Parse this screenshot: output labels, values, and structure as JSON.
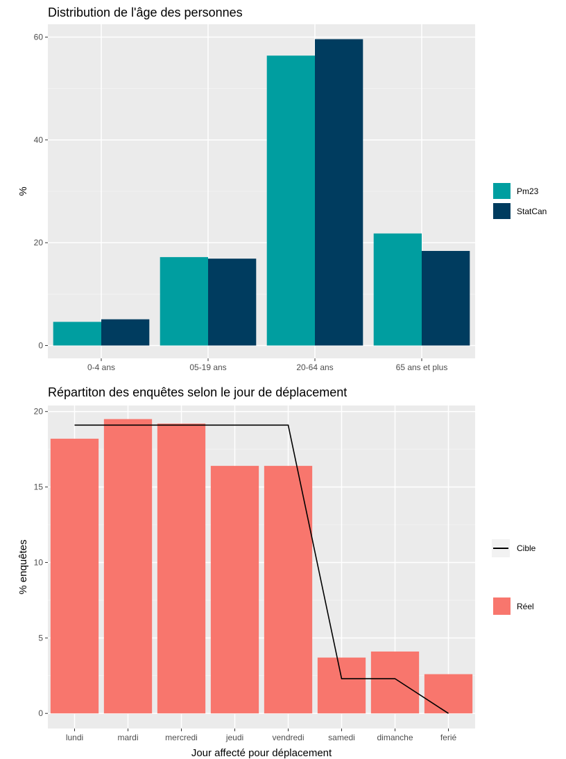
{
  "chart_data": [
    {
      "type": "bar",
      "title": "Distribution de l'âge des personnes",
      "xlabel": "",
      "ylabel": "%",
      "categories": [
        "0-4 ans",
        "05-19 ans",
        "20-64 ans",
        "65 ans et plus"
      ],
      "series": [
        {
          "name": "Pm23",
          "color": "#009ea0",
          "values": [
            4.6,
            17.2,
            56.4,
            21.8
          ]
        },
        {
          "name": "StatCan",
          "color": "#003c5f",
          "values": [
            5.1,
            16.9,
            59.6,
            18.4
          ]
        }
      ],
      "ylim": [
        -2.5,
        62.5
      ],
      "yticks": [
        0,
        20,
        40,
        60
      ],
      "grid": true,
      "legend": "right"
    },
    {
      "type": "bar",
      "title": "Répartiton des enquêtes selon le jour de déplacement",
      "xlabel": "Jour affecté pour déplacement",
      "ylabel": "% enquêtes",
      "categories": [
        "lundi",
        "mardi",
        "mercredi",
        "jeudi",
        "vendredi",
        "samedi",
        "dimanche",
        "ferié"
      ],
      "series": [
        {
          "name": "Réel",
          "kind": "bar",
          "color": "#f8766d",
          "values": [
            18.2,
            19.5,
            19.2,
            16.4,
            16.4,
            3.7,
            4.1,
            2.6
          ]
        },
        {
          "name": "Cible",
          "kind": "line",
          "color": "#000000",
          "values": [
            19.1,
            19.1,
            19.1,
            19.1,
            19.1,
            2.3,
            2.3,
            0.0
          ]
        }
      ],
      "ylim": [
        -1,
        20.4
      ],
      "yticks": [
        0,
        5,
        10,
        15,
        20
      ],
      "grid": true,
      "legend": "right"
    }
  ]
}
